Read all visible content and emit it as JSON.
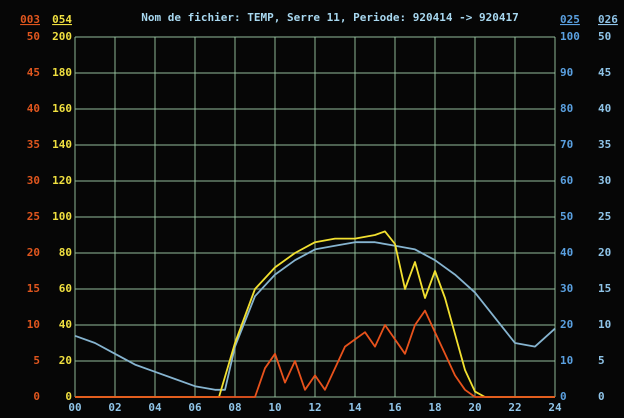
{
  "chart_data": {
    "type": "line",
    "title": "Nom de fichier: TEMP, Serre 11, Periode: 920414 -> 920417",
    "xlim": [
      0,
      24
    ],
    "xticks": [
      {
        "value": 0,
        "label": "00"
      },
      {
        "value": 2,
        "label": "02"
      },
      {
        "value": 4,
        "label": "04"
      },
      {
        "value": 6,
        "label": "06"
      },
      {
        "value": 8,
        "label": "08"
      },
      {
        "value": 10,
        "label": "10"
      },
      {
        "value": 12,
        "label": "12"
      },
      {
        "value": 14,
        "label": "14"
      },
      {
        "value": 16,
        "label": "16"
      },
      {
        "value": 18,
        "label": "18"
      },
      {
        "value": 20,
        "label": "20"
      },
      {
        "value": 22,
        "label": "22"
      },
      {
        "value": 24,
        "label": "24"
      }
    ],
    "grid": true,
    "axes": [
      {
        "name": "003",
        "side": "left",
        "color": "#e0561e",
        "lim": [
          0,
          50
        ],
        "ticks": [
          0,
          5,
          10,
          15,
          20,
          25,
          30,
          35,
          40,
          45,
          50
        ]
      },
      {
        "name": "054",
        "side": "left",
        "color": "#f0e040",
        "lim": [
          0,
          200
        ],
        "ticks": [
          0,
          20,
          40,
          60,
          80,
          100,
          120,
          140,
          160,
          180,
          200
        ]
      },
      {
        "name": "025",
        "side": "right",
        "color": "#5aa0e0",
        "lim": [
          0,
          100
        ],
        "ticks": [
          0,
          10,
          20,
          30,
          40,
          50,
          60,
          70,
          80,
          90,
          100
        ]
      },
      {
        "name": "026",
        "side": "right",
        "color": "#8fc4e8",
        "lim": [
          0,
          50
        ],
        "ticks": [
          0,
          5,
          10,
          15,
          20,
          25,
          30,
          35,
          40,
          45,
          50
        ]
      }
    ],
    "series": [
      {
        "axis": 2,
        "color": "#86b4d0",
        "x": [
          0,
          1,
          2,
          3,
          4,
          5,
          6,
          7,
          7.5,
          8,
          9,
          10,
          11,
          12,
          13,
          14,
          15,
          16,
          17,
          18,
          19,
          20,
          21,
          22,
          23,
          24
        ],
        "values": [
          17,
          15,
          12,
          9,
          7,
          5,
          3,
          2,
          2,
          14,
          28,
          34,
          38,
          41,
          42,
          43,
          43,
          42,
          41,
          38,
          34,
          29,
          22,
          15,
          14,
          19
        ]
      },
      {
        "axis": 1,
        "color": "#f2e030",
        "x": [
          0,
          7.2,
          8,
          9,
          10,
          11,
          12,
          13,
          14,
          15,
          15.5,
          16,
          16.5,
          17,
          17.5,
          18,
          18.5,
          19,
          19.5,
          20,
          20.5,
          24
        ],
        "values": [
          0,
          0,
          30,
          60,
          72,
          80,
          86,
          88,
          88,
          90,
          92,
          85,
          60,
          75,
          55,
          70,
          55,
          35,
          15,
          3,
          0,
          0
        ]
      },
      {
        "axis": 0,
        "color": "#e8521c",
        "x": [
          0,
          9,
          9.5,
          10,
          10.5,
          11,
          11.5,
          12,
          12.5,
          13,
          13.5,
          14,
          14.5,
          15,
          15.5,
          16,
          16.5,
          17,
          17.5,
          18,
          18.5,
          19,
          19.5,
          20,
          24
        ],
        "values": [
          0,
          0,
          4,
          6,
          2,
          5,
          1,
          3,
          1,
          4,
          7,
          8,
          9,
          7,
          10,
          8,
          6,
          10,
          12,
          9,
          6,
          3,
          1,
          0,
          0
        ]
      }
    ]
  }
}
